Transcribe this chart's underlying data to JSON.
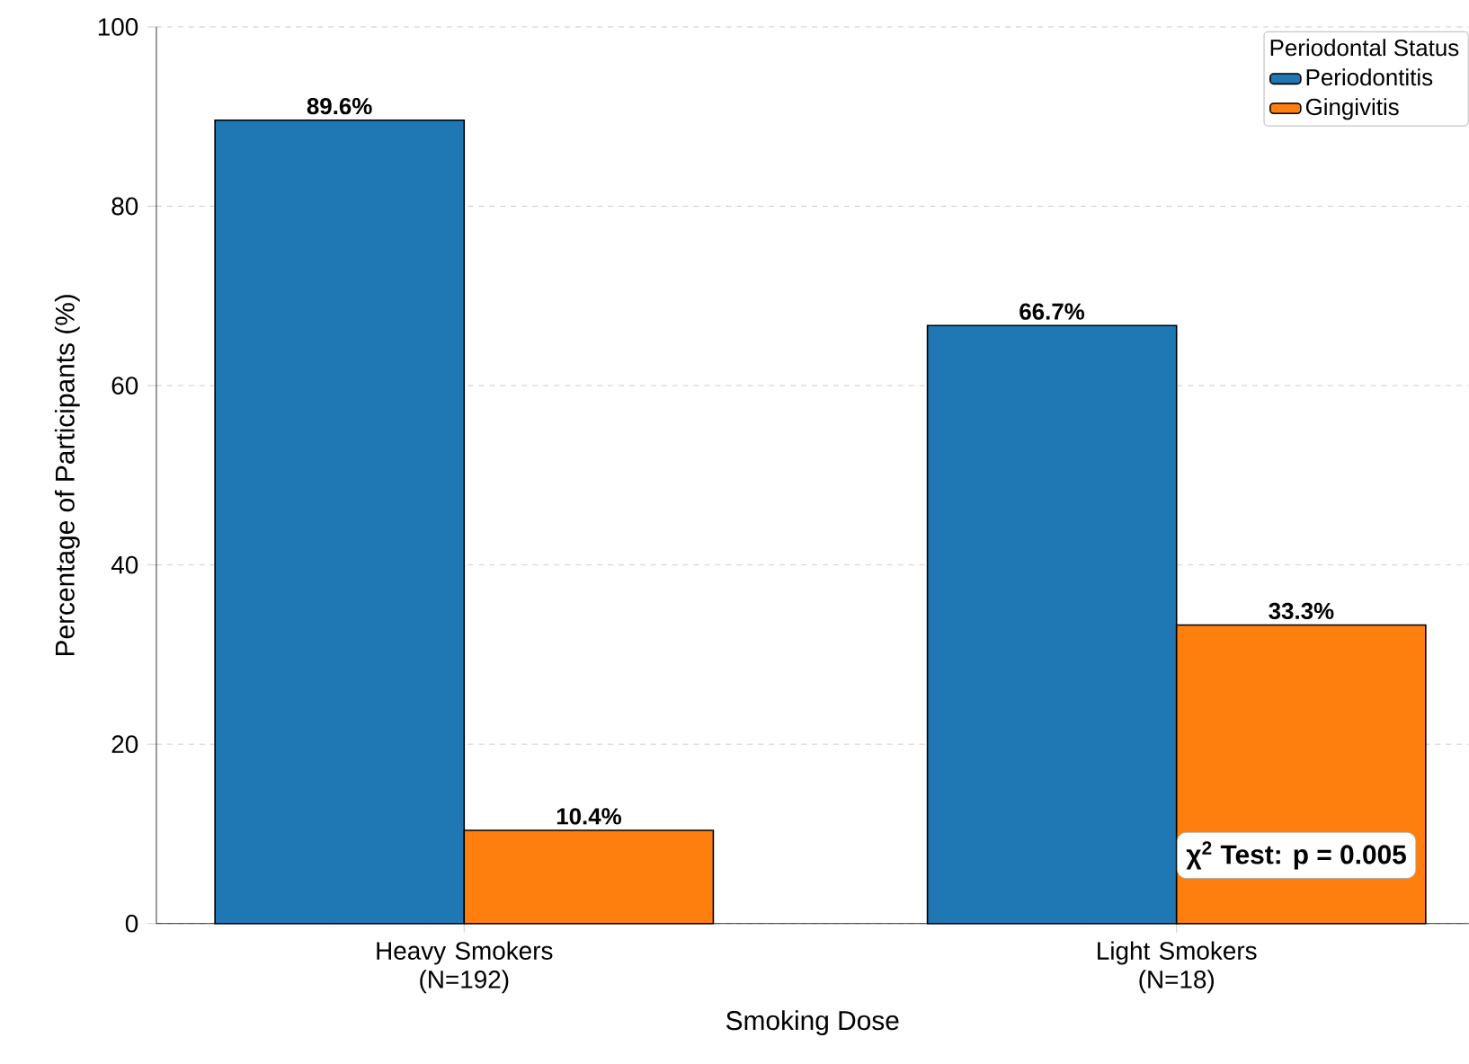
{
  "chart_data": {
    "type": "bar",
    "xlabel": "Smoking Dose",
    "ylabel": "Percentage of Participants (%)",
    "legend_title": "Periodontal Status",
    "categories": [
      "Heavy Smokers (N=192)",
      "Light Smokers (N=18)"
    ],
    "series": [
      {
        "name": "Periodontitis",
        "color": "#1f77b4",
        "values": [
          89.6,
          66.7
        ],
        "value_labels": [
          "89.6%",
          "66.7%"
        ]
      },
      {
        "name": "Gingivitis",
        "color": "#ff7f0e",
        "values": [
          10.4,
          33.3
        ],
        "value_labels": [
          "10.4%",
          "33.3%"
        ]
      }
    ],
    "ylim": [
      0,
      100
    ],
    "yticks": [
      0,
      20,
      40,
      60,
      80,
      100
    ],
    "grid": "y",
    "legend": "top right",
    "annotations": [
      "χ$^{2}$ Test: p = 0.005"
    ]
  }
}
